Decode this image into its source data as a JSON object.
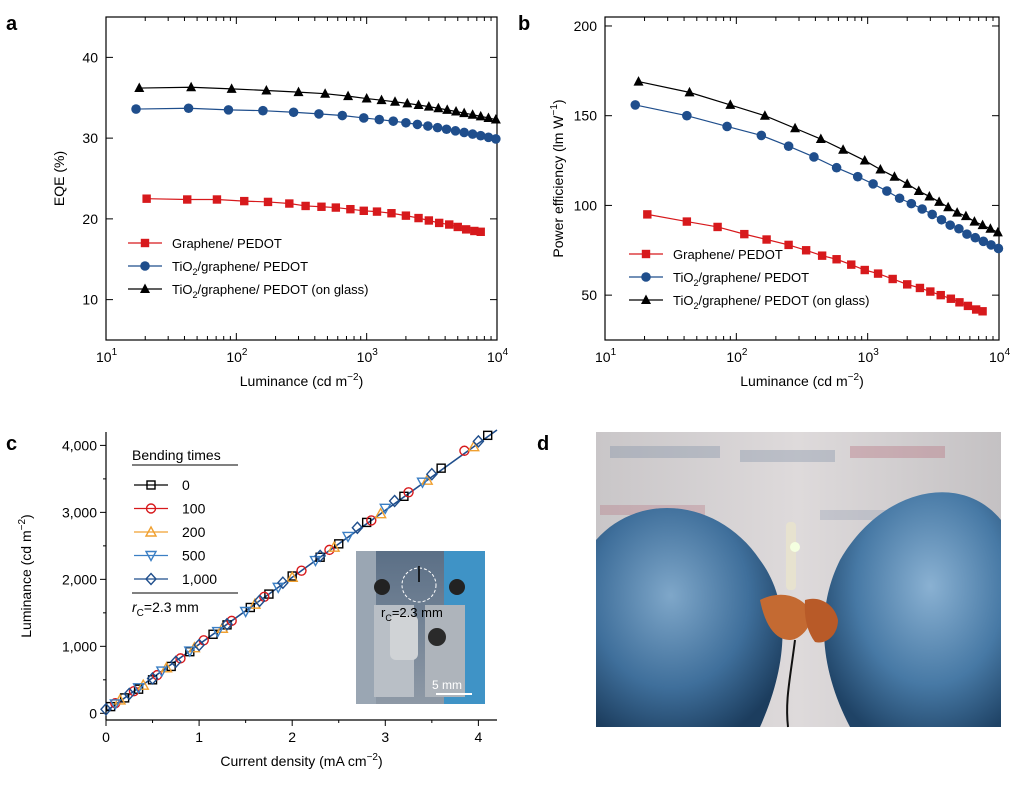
{
  "panels": {
    "a": "a",
    "b": "b",
    "c": "c",
    "d": "d"
  },
  "chart_data": [
    {
      "panel": "a",
      "type": "line",
      "xlabel": "Luminance (cd m−2)",
      "ylabel": "EQE (%)",
      "xscale": "log",
      "xlim": [
        10,
        10000
      ],
      "ylim": [
        5,
        45
      ],
      "x_ticks": [
        10,
        100,
        1000,
        10000
      ],
      "x_tick_exponents": [
        "1",
        "2",
        "3",
        "4"
      ],
      "y_ticks": [
        10,
        20,
        30,
        40
      ],
      "legend_placement": "bottom-left",
      "series": [
        {
          "name": "Graphene/ PEDOT",
          "color": "#d7191c",
          "marker": "square",
          "x": [
            20.5,
            42,
            71,
            115,
            175,
            255,
            340,
            450,
            580,
            750,
            950,
            1200,
            1550,
            2000,
            2500,
            3000,
            3600,
            4300,
            5000,
            5800,
            6700,
            7500
          ],
          "y": [
            22.5,
            22.4,
            22.4,
            22.2,
            22.1,
            21.9,
            21.6,
            21.5,
            21.4,
            21.2,
            21.0,
            20.9,
            20.7,
            20.4,
            20.1,
            19.8,
            19.5,
            19.3,
            19.0,
            18.7,
            18.5,
            18.4
          ]
        },
        {
          "name": "TiO2/graphene/ PEDOT",
          "color": "#1f4e8c",
          "marker": "circle",
          "x": [
            17,
            43,
            87,
            160,
            275,
            430,
            650,
            950,
            1250,
            1600,
            2000,
            2450,
            2950,
            3500,
            4100,
            4800,
            5600,
            6500,
            7500,
            8600,
            9800
          ],
          "y": [
            33.6,
            33.7,
            33.5,
            33.4,
            33.2,
            33.0,
            32.8,
            32.5,
            32.3,
            32.1,
            31.9,
            31.7,
            31.5,
            31.3,
            31.1,
            30.9,
            30.7,
            30.5,
            30.3,
            30.1,
            29.9
          ]
        },
        {
          "name": "TiO2/graphene/ PEDOT (on glass)",
          "color": "#000000",
          "marker": "triangle",
          "x": [
            18,
            45,
            92,
            170,
            300,
            480,
            720,
            1000,
            1300,
            1650,
            2050,
            2500,
            3000,
            3550,
            4150,
            4850,
            5600,
            6500,
            7500,
            8600,
            9800
          ],
          "y": [
            36.2,
            36.3,
            36.1,
            35.9,
            35.7,
            35.5,
            35.2,
            34.9,
            34.7,
            34.5,
            34.3,
            34.1,
            33.9,
            33.7,
            33.5,
            33.3,
            33.1,
            32.9,
            32.7,
            32.5,
            32.3
          ]
        }
      ]
    },
    {
      "panel": "b",
      "type": "line",
      "xlabel": "Luminance (cd m−2)",
      "ylabel": "Power efficiency (lm W−1)",
      "xscale": "log",
      "xlim": [
        10,
        10000
      ],
      "ylim": [
        25,
        205
      ],
      "x_ticks": [
        10,
        100,
        1000,
        10000
      ],
      "x_tick_exponents": [
        "1",
        "2",
        "3",
        "4"
      ],
      "y_ticks": [
        50,
        100,
        150,
        200
      ],
      "legend_placement": "bottom-left",
      "series": [
        {
          "name": "Graphene/ PEDOT",
          "color": "#d7191c",
          "marker": "square",
          "x": [
            21,
            42,
            72,
            115,
            170,
            250,
            340,
            450,
            580,
            750,
            950,
            1200,
            1550,
            2000,
            2500,
            3000,
            3600,
            4300,
            5000,
            5800,
            6700,
            7500
          ],
          "y": [
            95,
            91,
            88,
            84,
            81,
            78,
            75,
            72,
            70,
            67,
            64,
            62,
            59,
            56,
            54,
            52,
            50,
            48,
            46,
            44,
            42,
            41
          ]
        },
        {
          "name": "TiO2/graphene/ PEDOT",
          "color": "#1f4e8c",
          "marker": "circle",
          "x": [
            17,
            42,
            85,
            155,
            250,
            390,
            580,
            840,
            1100,
            1400,
            1750,
            2150,
            2600,
            3100,
            3650,
            4250,
            4950,
            5700,
            6600,
            7600,
            8700,
            9900
          ],
          "y": [
            156,
            150,
            144,
            139,
            133,
            127,
            121,
            116,
            112,
            108,
            104,
            101,
            98,
            95,
            92,
            89,
            87,
            84,
            82,
            80,
            78,
            76
          ]
        },
        {
          "name": "TiO2/graphene/ PEDOT (on glass)",
          "color": "#000000",
          "marker": "triangle",
          "x": [
            18,
            44,
            90,
            165,
            280,
            440,
            650,
            950,
            1250,
            1600,
            2000,
            2450,
            2950,
            3500,
            4100,
            4800,
            5600,
            6500,
            7500,
            8600,
            9800
          ],
          "y": [
            169,
            163,
            156,
            150,
            143,
            137,
            131,
            125,
            120,
            116,
            112,
            108,
            105,
            102,
            99,
            96,
            94,
            91,
            89,
            87,
            85
          ]
        }
      ]
    },
    {
      "panel": "c",
      "type": "line",
      "xlabel": "Current density (mA cm−2)",
      "ylabel": "Luminance (cd m−2)",
      "xlim": [
        0,
        4.2
      ],
      "ylim": [
        -100,
        4200
      ],
      "x_ticks": [
        0,
        1,
        2,
        3,
        4
      ],
      "y_ticks": [
        0,
        1000,
        2000,
        3000,
        4000
      ],
      "y_tick_labels": [
        "0",
        "1,000",
        "2,000",
        "3,000",
        "4,000"
      ],
      "legend_title": "Bending times",
      "legend_placement": "top-left",
      "legend_note": "rC=2.3 mm",
      "fit_line": {
        "color": "#1f4e8c",
        "x": [
          0,
          4.2
        ],
        "y": [
          30,
          4230
        ]
      },
      "series": [
        {
          "name": "0",
          "color": "#000000",
          "marker": "square-open",
          "x": [
            0.05,
            0.2,
            0.35,
            0.5,
            0.7,
            0.9,
            1.15,
            1.3,
            1.55,
            1.75,
            2.0,
            2.3,
            2.5,
            2.8,
            3.2,
            3.6,
            4.1
          ],
          "y": [
            100,
            230,
            360,
            500,
            700,
            920,
            1180,
            1320,
            1580,
            1780,
            2050,
            2330,
            2530,
            2850,
            3240,
            3660,
            4150
          ]
        },
        {
          "name": "100",
          "color": "#d7191c",
          "marker": "circle-open",
          "x": [
            0.1,
            0.3,
            0.55,
            0.8,
            1.05,
            1.35,
            1.7,
            2.1,
            2.4,
            2.85,
            3.25,
            3.85
          ],
          "y": [
            150,
            330,
            570,
            820,
            1090,
            1380,
            1740,
            2130,
            2440,
            2880,
            3300,
            3920
          ]
        },
        {
          "name": "200",
          "color": "#f0a030",
          "marker": "triangle-open",
          "x": [
            0.15,
            0.4,
            0.65,
            0.95,
            1.25,
            1.6,
            2.0,
            2.45,
            2.95,
            3.45,
            3.95
          ],
          "y": [
            200,
            420,
            680,
            980,
            1270,
            1630,
            2030,
            2480,
            2980,
            3480,
            3980
          ]
        },
        {
          "name": "500",
          "color": "#3b7fc4",
          "marker": "triangle-down-open",
          "x": [
            0.1,
            0.35,
            0.6,
            0.9,
            1.2,
            1.5,
            1.85,
            2.25,
            2.6,
            3.0,
            3.4
          ],
          "y": [
            140,
            380,
            630,
            930,
            1220,
            1520,
            1880,
            2280,
            2640,
            3060,
            3450
          ]
        },
        {
          "name": "1,000",
          "color": "#1f4e8c",
          "marker": "diamond-open",
          "x": [
            0.0,
            0.25,
            0.5,
            0.75,
            1.0,
            1.3,
            1.65,
            1.9,
            2.3,
            2.7,
            3.1,
            3.5,
            4.0
          ],
          "y": [
            60,
            290,
            520,
            770,
            1020,
            1330,
            1680,
            1950,
            2350,
            2770,
            3170,
            3570,
            4060
          ]
        }
      ],
      "inset": {
        "radius_label": "rC=2.3 mm",
        "scale_label": "5 mm"
      }
    }
  ]
}
